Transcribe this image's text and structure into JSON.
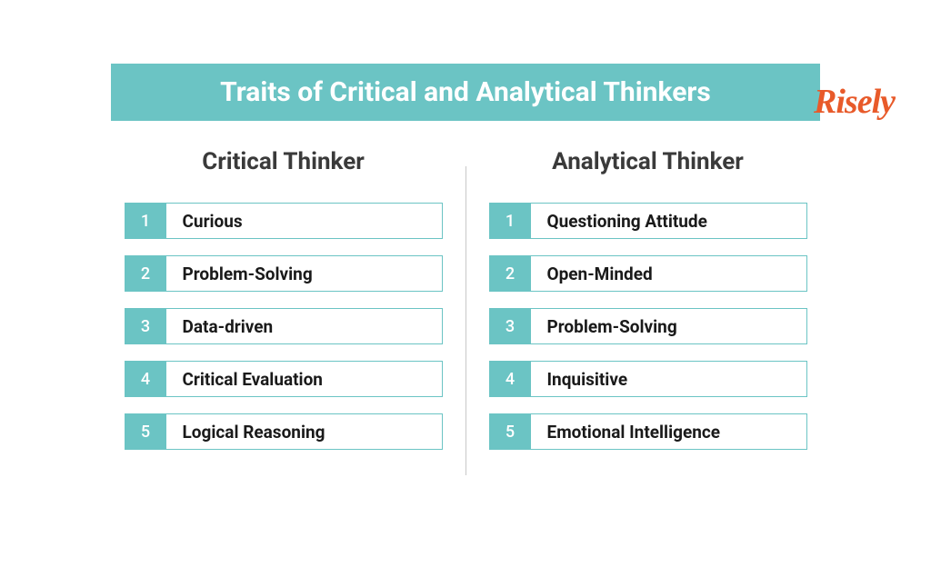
{
  "brand": {
    "name": "Risely",
    "color": "#e85a2a"
  },
  "title": {
    "text": "Traits of Critical and Analytical Thinkers",
    "bg_color": "#6bc4c4",
    "text_color": "#ffffff"
  },
  "colors": {
    "heading_text": "#3a3a3a",
    "trait_text": "#1a1a1a",
    "accent": "#6bc4c4",
    "accent_text": "#ffffff",
    "border": "#6bc4c4",
    "divider": "#c8c8c8"
  },
  "columns": {
    "left": {
      "heading": "Critical Thinker",
      "items": [
        {
          "num": "1",
          "label": "Curious"
        },
        {
          "num": "2",
          "label": "Problem-Solving"
        },
        {
          "num": "3",
          "label": "Data-driven"
        },
        {
          "num": "4",
          "label": "Critical Evaluation"
        },
        {
          "num": "5",
          "label": "Logical Reasoning"
        }
      ]
    },
    "right": {
      "heading": "Analytical Thinker",
      "items": [
        {
          "num": "1",
          "label": "Questioning Attitude"
        },
        {
          "num": "2",
          "label": "Open-Minded"
        },
        {
          "num": "3",
          "label": "Problem-Solving"
        },
        {
          "num": "4",
          "label": "Inquisitive"
        },
        {
          "num": "5",
          "label": "Emotional Intelligence"
        }
      ]
    }
  }
}
